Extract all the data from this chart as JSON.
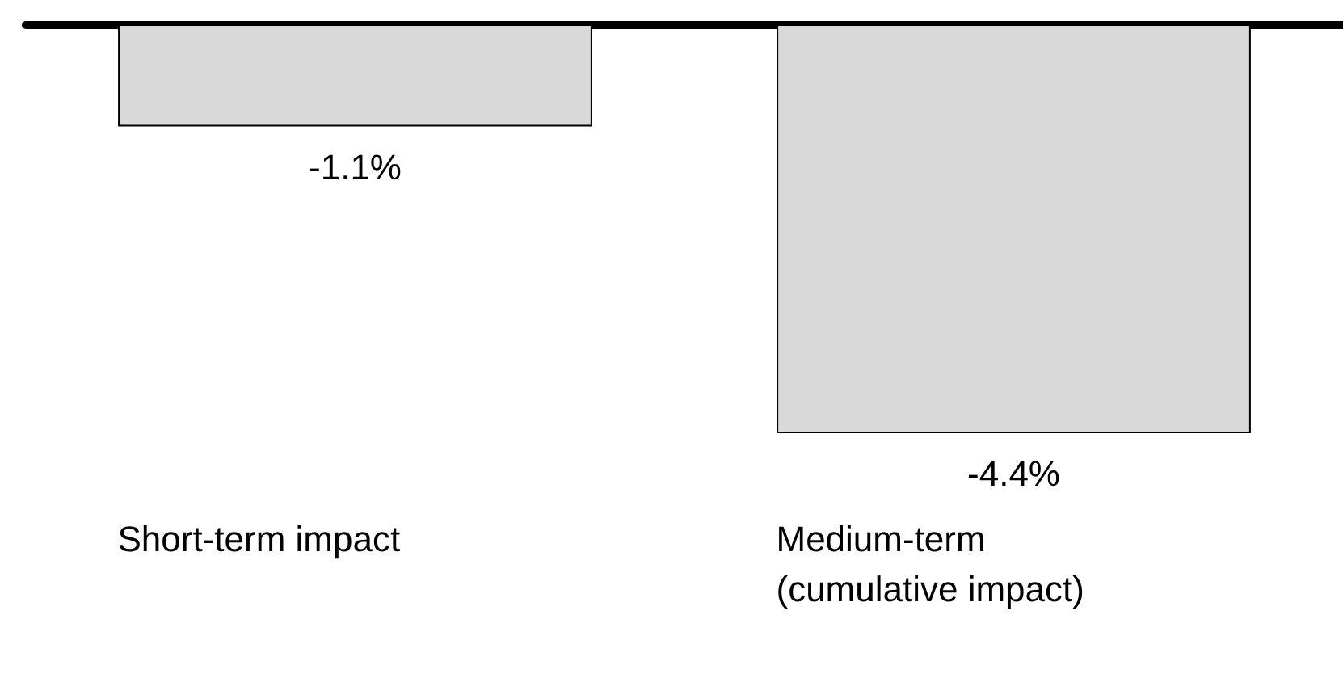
{
  "chart_data": {
    "type": "bar",
    "categories": [
      "Short-term impact",
      "Medium-term\n(cumulative impact)"
    ],
    "values": [
      -1.1,
      -4.4
    ],
    "value_labels": [
      "-1.1%",
      "-4.4%"
    ],
    "color": "#d9d9d9",
    "grid": false
  }
}
